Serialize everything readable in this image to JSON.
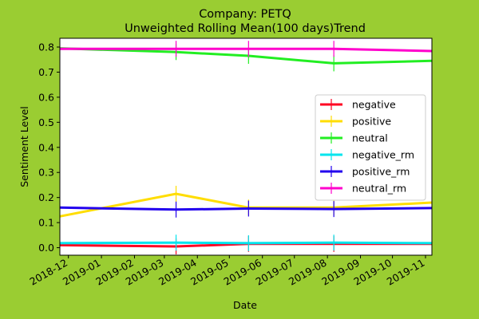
{
  "chart_data": {
    "type": "line",
    "title": "Company: PETQ",
    "subtitle": "Unweighted Rolling Mean(100 days)Trend",
    "xlabel": "Date",
    "ylabel": "Sentiment Level",
    "xlim": [
      "2018-11-23",
      "2019-11-07"
    ],
    "ylim": [
      -0.03,
      0.835
    ],
    "x_ticks": [
      "2018-12",
      "2019-01",
      "2019-02",
      "2019-03",
      "2019-04",
      "2019-05",
      "2019-06",
      "2019-07",
      "2019-08",
      "2019-09",
      "2019-10",
      "2019-11"
    ],
    "y_ticks": [
      "0.0",
      "0.1",
      "0.2",
      "0.3",
      "0.4",
      "0.5",
      "0.6",
      "0.7",
      "0.8"
    ],
    "x": [
      "2018-11-23",
      "2019-03-12",
      "2019-05-19",
      "2019-08-07",
      "2019-11-07"
    ],
    "series": [
      {
        "name": "negative",
        "color": "#ff0022",
        "values": [
          0.01,
          0.005,
          0.015,
          0.015,
          0.015
        ]
      },
      {
        "name": "positive",
        "color": "#ffdd00",
        "values": [
          0.125,
          0.215,
          0.16,
          0.16,
          0.18
        ]
      },
      {
        "name": "neutral",
        "color": "#22ee22",
        "values": [
          0.795,
          0.78,
          0.765,
          0.735,
          0.745
        ]
      },
      {
        "name": "negative_rm",
        "color": "#00e5ee",
        "values": [
          0.018,
          0.02,
          0.018,
          0.02,
          0.018
        ]
      },
      {
        "name": "positive_rm",
        "color": "#2200ee",
        "values": [
          0.16,
          0.152,
          0.156,
          0.154,
          0.158
        ]
      },
      {
        "name": "neutral_rm",
        "color": "#ff00cc",
        "values": [
          0.793,
          0.793,
          0.793,
          0.793,
          0.784
        ]
      }
    ],
    "legend_position": "center-right",
    "grid": false
  }
}
